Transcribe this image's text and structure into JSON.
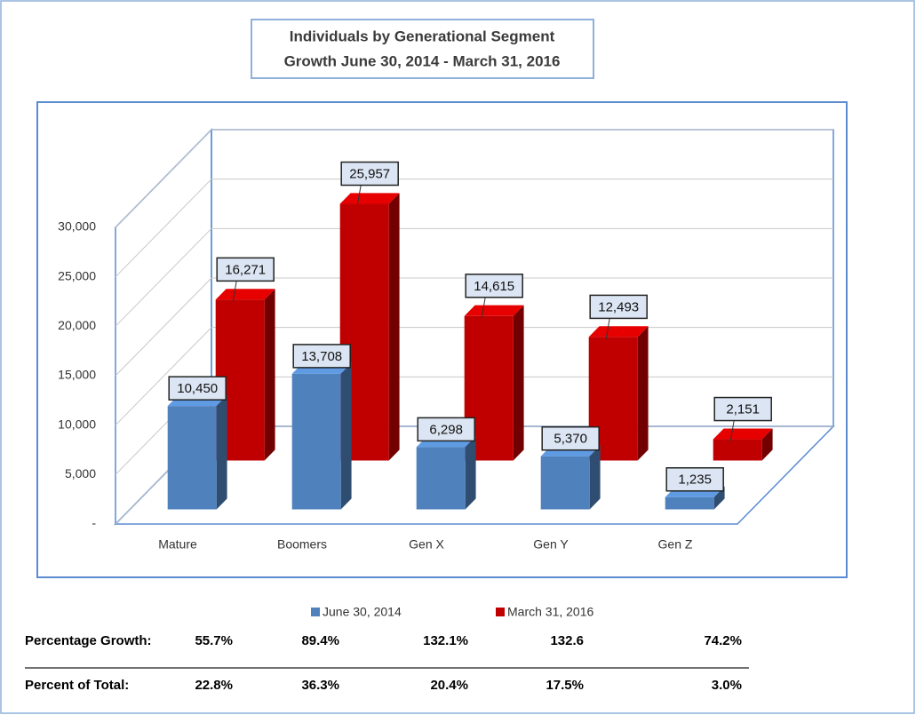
{
  "chart_data": {
    "type": "bar3d",
    "title": "Individuals by Generational Segment",
    "subtitle": "Growth June 30, 2014 - March 31, 2016",
    "categories": [
      "Mature",
      "Boomers",
      "Gen X",
      "Gen Y",
      "Gen Z"
    ],
    "series": [
      {
        "name": "June 30, 2014",
        "color": "#4f81bd",
        "values": [
          10450,
          13708,
          6298,
          5370,
          1235
        ],
        "value_labels": [
          "10,450",
          "13,708",
          "6,298",
          "5,370",
          "1,235"
        ]
      },
      {
        "name": "March 31, 2016",
        "color": "#c00000",
        "values": [
          16271,
          25957,
          14615,
          12493,
          2151
        ],
        "value_labels": [
          "16,271",
          "25,957",
          "14,615",
          "12,493",
          "2,151"
        ]
      }
    ],
    "ylim": [
      0,
      30000
    ],
    "yticks": [
      {
        "value": 0,
        "label": "-"
      },
      {
        "value": 5000,
        "label": "5,000"
      },
      {
        "value": 10000,
        "label": "10,000"
      },
      {
        "value": 15000,
        "label": "15,000"
      },
      {
        "value": 20000,
        "label": "20,000"
      },
      {
        "value": 25000,
        "label": "25,000"
      },
      {
        "value": 30000,
        "label": "30,000"
      }
    ],
    "grid": true
  },
  "table": {
    "rows": [
      {
        "label": "Percentage Growth:",
        "cells": [
          "55.7%",
          "89.4%",
          "132.1%",
          "132.6",
          "74.2%"
        ]
      },
      {
        "label": "Percent of Total:",
        "cells": [
          "22.8%",
          "36.3%",
          "20.4%",
          "17.5%",
          "3.0%"
        ]
      }
    ]
  }
}
